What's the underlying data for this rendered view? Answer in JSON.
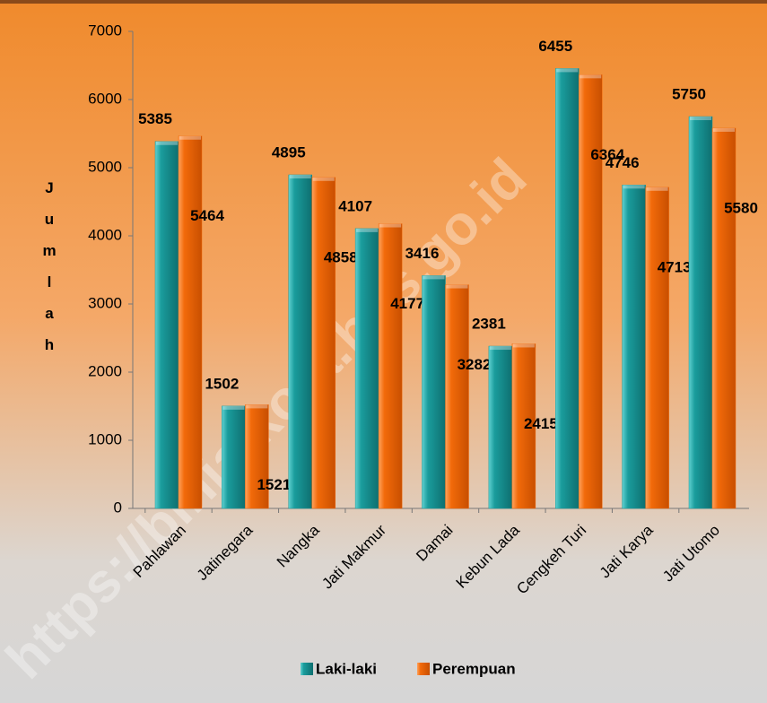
{
  "chart_data": {
    "type": "bar",
    "y_label": "Jumlah",
    "watermark": "https://binjaikota.bps.go.id",
    "categories": [
      "Pahlawan",
      "Jatinegara",
      "Nangka",
      "Jati Makmur",
      "Damai",
      "Kebun Lada",
      "Cengkeh Turi",
      "Jati Karya",
      "Jati Utomo"
    ],
    "series": [
      {
        "name": "Laki-laki",
        "color": "#1a9c9c",
        "values": [
          5385,
          1502,
          4895,
          4107,
          3416,
          2381,
          6455,
          4746,
          5750
        ]
      },
      {
        "name": "Perempuan",
        "color": "#f26a0a",
        "values": [
          5464,
          1521,
          4858,
          4177,
          3282,
          2415,
          6364,
          4713,
          5580
        ]
      }
    ],
    "ylim": [
      0,
      7000
    ],
    "yticks": [
      0,
      1000,
      2000,
      3000,
      4000,
      5000,
      6000,
      7000
    ],
    "grid": false,
    "legend": "bottom"
  }
}
